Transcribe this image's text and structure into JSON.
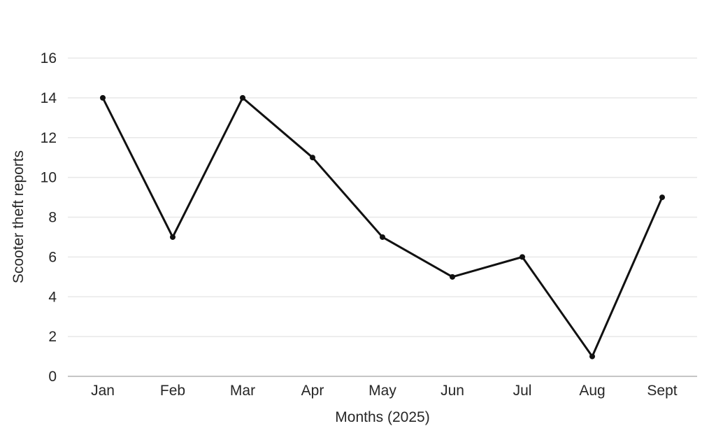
{
  "chart_data": {
    "type": "line",
    "categories": [
      "Jan",
      "Feb",
      "Mar",
      "Apr",
      "May",
      "Jun",
      "Jul",
      "Aug",
      "Sept"
    ],
    "values": [
      14,
      7,
      14,
      11,
      7,
      5,
      6,
      1,
      9
    ],
    "series": [
      {
        "name": "Scooter theft reports",
        "values": [
          14,
          7,
          14,
          11,
          7,
          5,
          6,
          1,
          9
        ]
      }
    ],
    "title": "",
    "xlabel": "Months (2025)",
    "ylabel": "Scooter theft reports",
    "ylim": [
      0,
      16
    ],
    "ytick_step": 2,
    "yticks": [
      0,
      2,
      4,
      6,
      8,
      10,
      12,
      14,
      16
    ],
    "grid": true,
    "legend_position": "none",
    "line_color": "#111111",
    "marker": "circle",
    "marker_color": "#111111",
    "grid_color": "#e8e8e8",
    "axis_line_color": "#c6c6c6",
    "text_color": "#262626",
    "background_color": "#ffffff"
  }
}
